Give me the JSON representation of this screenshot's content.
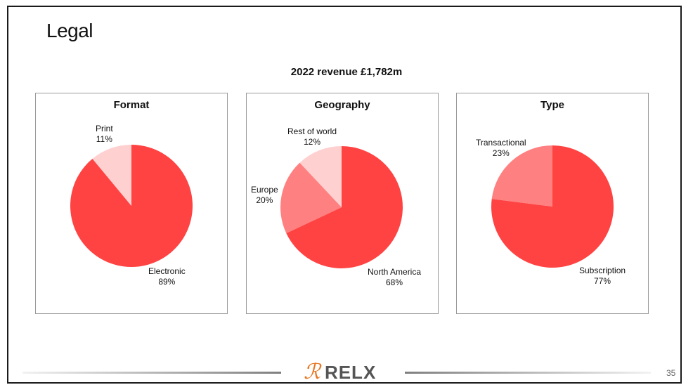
{
  "slide": {
    "title": "Legal",
    "subtitle": "2022 revenue £1,782m",
    "page_number": "35"
  },
  "logo": {
    "mark": "ℛ",
    "text": "RELX",
    "mark_color": "#e87722"
  },
  "colors": {
    "dark_red": "#ff4343",
    "mid_red": "#ff8080",
    "light_pink": "#ffd0d0"
  },
  "chart_data": [
    {
      "type": "pie",
      "title": "Format",
      "slices": [
        {
          "label": "Electronic",
          "value_text": "89%",
          "value": 89,
          "color": "#ff4343"
        },
        {
          "label": "Print",
          "value_text": "11%",
          "value": 11,
          "color": "#ffd0d0"
        }
      ]
    },
    {
      "type": "pie",
      "title": "Geography",
      "slices": [
        {
          "label": "North America",
          "value_text": "68%",
          "value": 68,
          "color": "#ff4343"
        },
        {
          "label": "Europe",
          "value_text": "20%",
          "value": 20,
          "color": "#ff8080"
        },
        {
          "label": "Rest of world",
          "value_text": "12%",
          "value": 12,
          "color": "#ffd0d0"
        }
      ]
    },
    {
      "type": "pie",
      "title": "Type",
      "slices": [
        {
          "label": "Subscription",
          "value_text": "77%",
          "value": 77,
          "color": "#ff4343"
        },
        {
          "label": "Transactional",
          "value_text": "23%",
          "value": 23,
          "color": "#ff8080"
        }
      ]
    }
  ]
}
